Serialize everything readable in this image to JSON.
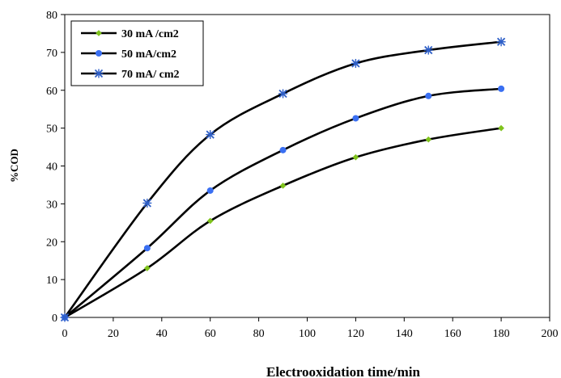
{
  "chart_data": {
    "type": "line",
    "title": "",
    "xlabel": "Electrooxidation time/min",
    "ylabel": "%COD",
    "xlim": [
      0,
      200
    ],
    "ylim": [
      0,
      80
    ],
    "xticks": [
      "0",
      "20",
      "40",
      "60",
      "80",
      "100",
      "120",
      "140",
      "160",
      "180",
      "200"
    ],
    "yticks": [
      "0",
      "10",
      "20",
      "30",
      "40",
      "50",
      "60",
      "70",
      "80"
    ],
    "grid": false,
    "legend_position": "top-left",
    "x": [
      0,
      34,
      60,
      90,
      120,
      150,
      180
    ],
    "series": [
      {
        "name": "30 mA /cm2",
        "marker": "diamond",
        "color": "#7fc31c",
        "values": [
          0,
          13,
          25.5,
          34.8,
          42.3,
          47,
          50
        ]
      },
      {
        "name": "50 mA/cm2",
        "marker": "circle",
        "color": "#3a6ff2",
        "values": [
          0,
          18.3,
          33.5,
          44.2,
          52.6,
          58.5,
          60.4
        ]
      },
      {
        "name": "70 mA/ cm2",
        "marker": "star",
        "color": "#2e5fc8",
        "values": [
          0,
          30.2,
          48.3,
          59.1,
          67.1,
          70.6,
          72.8
        ]
      }
    ]
  }
}
